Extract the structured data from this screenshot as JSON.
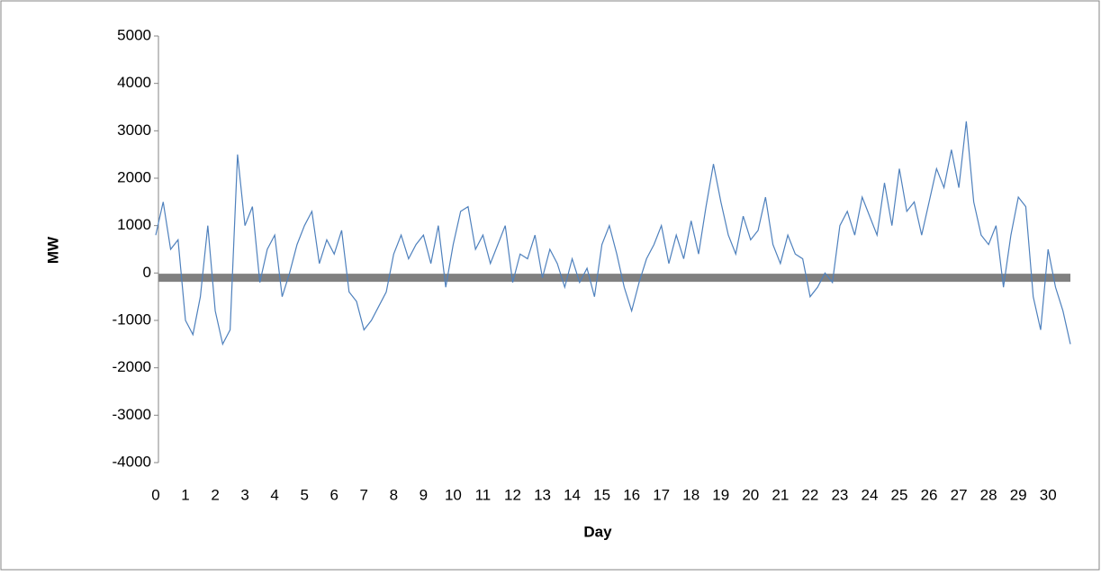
{
  "chart_data": {
    "type": "line",
    "xlabel": "Day",
    "ylabel": "MW",
    "x": [
      0,
      0.25,
      0.5,
      0.75,
      1,
      1.25,
      1.5,
      1.75,
      2,
      2.25,
      2.5,
      2.75,
      3,
      3.25,
      3.5,
      3.75,
      4,
      4.25,
      4.5,
      4.75,
      5,
      5.25,
      5.5,
      5.75,
      6,
      6.25,
      6.5,
      6.75,
      7,
      7.25,
      7.5,
      7.75,
      8,
      8.25,
      8.5,
      8.75,
      9,
      9.25,
      9.5,
      9.75,
      10,
      10.25,
      10.5,
      10.75,
      11,
      11.25,
      11.5,
      11.75,
      12,
      12.25,
      12.5,
      12.75,
      13,
      13.25,
      13.5,
      13.75,
      14,
      14.25,
      14.5,
      14.75,
      15,
      15.25,
      15.5,
      15.75,
      16,
      16.25,
      16.5,
      16.75,
      17,
      17.25,
      17.5,
      17.75,
      18,
      18.25,
      18.5,
      18.75,
      19,
      19.25,
      19.5,
      19.75,
      20,
      20.25,
      20.5,
      20.75,
      21,
      21.25,
      21.5,
      21.75,
      22,
      22.25,
      22.5,
      22.75,
      23,
      23.25,
      23.5,
      23.75,
      24,
      24.25,
      24.5,
      24.75,
      25,
      25.25,
      25.5,
      25.75,
      26,
      26.25,
      26.5,
      26.75,
      27,
      27.25,
      27.5,
      27.75,
      28,
      28.25,
      28.5,
      28.75,
      29,
      29.25,
      29.5,
      29.75,
      30,
      30.25,
      30.5,
      30.75
    ],
    "series": [
      {
        "color": "#4f81bd",
        "values": [
          800,
          1500,
          500,
          700,
          -1000,
          -1300,
          -500,
          1000,
          -800,
          -1500,
          -1200,
          2500,
          1000,
          1400,
          -200,
          500,
          800,
          -500,
          0,
          600,
          1000,
          1300,
          200,
          700,
          400,
          900,
          -400,
          -600,
          -1200,
          -1000,
          -700,
          -400,
          400,
          800,
          300,
          600,
          800,
          200,
          1000,
          -300,
          600,
          1300,
          1400,
          500,
          800,
          200,
          600,
          1000,
          -200,
          400,
          300,
          800,
          -100,
          500,
          200,
          -300,
          300,
          -200,
          100,
          -500,
          600,
          1000,
          400,
          -300,
          -800,
          -200,
          300,
          600,
          1000,
          200,
          800,
          300,
          1100,
          400,
          1400,
          2300,
          1500,
          800,
          400,
          1200,
          700,
          900,
          1600,
          600,
          200,
          800,
          400,
          300,
          -500,
          -300,
          0,
          -200,
          1000,
          1300,
          800,
          1600,
          1200,
          800,
          1900,
          1000,
          2200,
          1300,
          1500,
          800,
          1500,
          2200,
          1800,
          2600,
          1800,
          3200,
          1500,
          800,
          600,
          1000,
          -300,
          800,
          1600,
          1400,
          -500,
          -1200,
          500,
          -300,
          -800,
          -1500
        ]
      }
    ],
    "reference_line": {
      "value": -100,
      "color": "#808080"
    },
    "xlim": [
      0,
      30.75
    ],
    "xticks": [
      0,
      1,
      2,
      3,
      4,
      5,
      6,
      7,
      8,
      9,
      10,
      11,
      12,
      13,
      14,
      15,
      16,
      17,
      18,
      19,
      20,
      21,
      22,
      23,
      24,
      25,
      26,
      27,
      28,
      29,
      30
    ],
    "ylim": [
      -4000,
      5000
    ],
    "yticks": [
      -4000,
      -3000,
      -2000,
      -1000,
      0,
      1000,
      2000,
      3000,
      4000,
      5000
    ]
  }
}
